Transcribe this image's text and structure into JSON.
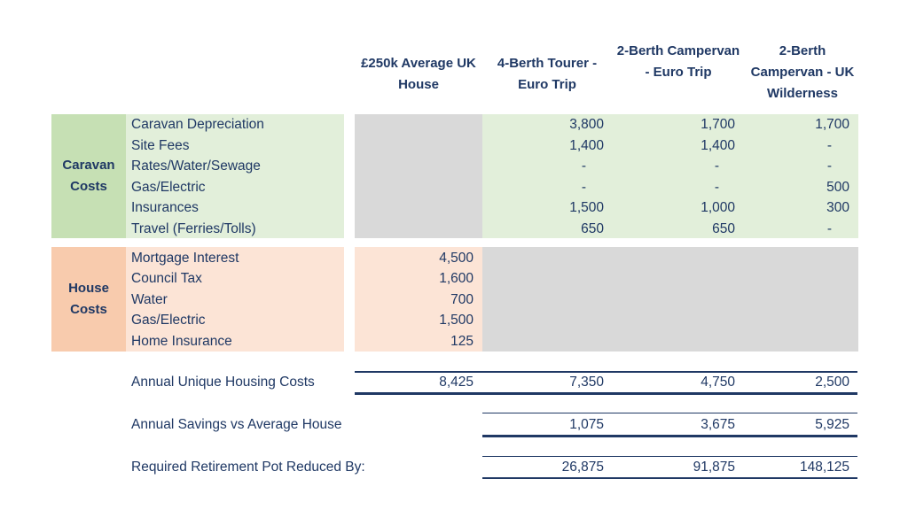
{
  "columns": [
    "£250k Average UK House",
    "4-Berth Tourer - Euro Trip",
    "2-Berth Campervan - Euro Trip",
    "2-Berth Campervan - UK Wilderness"
  ],
  "caravan": {
    "label": "Caravan Costs",
    "rows": [
      {
        "label": "Caravan Depreciation",
        "values": [
          "3,800",
          "1,700",
          "1,700"
        ]
      },
      {
        "label": "Site Fees",
        "values": [
          "1,400",
          "1,400",
          "-"
        ]
      },
      {
        "label": "Rates/Water/Sewage",
        "values": [
          "-",
          "-",
          "-"
        ]
      },
      {
        "label": "Gas/Electric",
        "values": [
          "-",
          "-",
          "500"
        ]
      },
      {
        "label": "Insurances",
        "values": [
          "1,500",
          "1,000",
          "300"
        ]
      },
      {
        "label": "Travel (Ferries/Tolls)",
        "values": [
          "650",
          "650",
          "-"
        ]
      }
    ]
  },
  "house": {
    "label": "House Costs",
    "rows": [
      {
        "label": "Mortgage Interest",
        "value": "4,500"
      },
      {
        "label": "Council Tax",
        "value": "1,600"
      },
      {
        "label": "Water",
        "value": "700"
      },
      {
        "label": "Gas/Electric",
        "value": "1,500"
      },
      {
        "label": "Home Insurance",
        "value": "125"
      }
    ]
  },
  "summary": [
    {
      "label": "Annual Unique Housing Costs",
      "values": [
        "8,425",
        "7,350",
        "4,750",
        "2,500"
      ]
    },
    {
      "label": "Annual Savings vs Average House",
      "values": [
        "",
        "1,075",
        "3,675",
        "5,925"
      ]
    },
    {
      "label": "Required Retirement Pot Reduced By:",
      "values": [
        "",
        "26,875",
        "91,875",
        "148,125"
      ]
    }
  ]
}
